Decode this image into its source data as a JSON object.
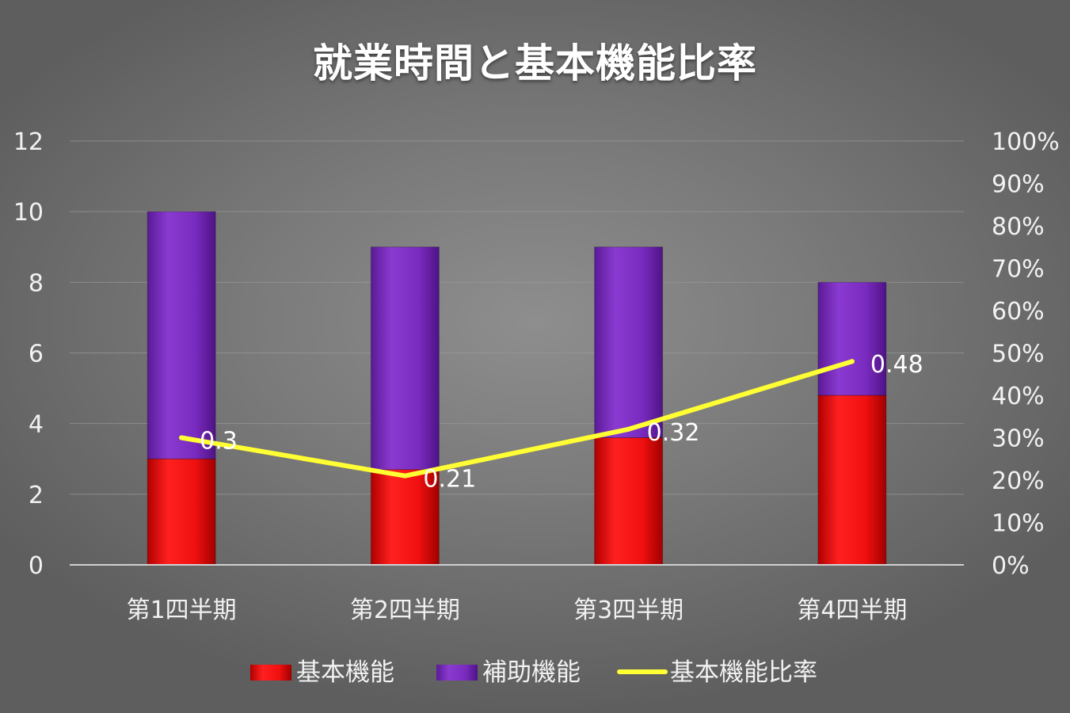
{
  "chart_data": {
    "type": "bar",
    "stacked": true,
    "title": "就業時間と基本機能比率",
    "categories": [
      "第1四半期",
      "第2四半期",
      "第3四半期",
      "第4四半期"
    ],
    "series": [
      {
        "name": "基本機能",
        "type": "bar",
        "axis": "left",
        "color": "#ee1010",
        "values": [
          3.0,
          2.7,
          3.6,
          4.8
        ]
      },
      {
        "name": "補助機能",
        "type": "bar",
        "axis": "left",
        "color": "#7a2bbf",
        "values": [
          7.0,
          6.3,
          5.4,
          3.2
        ]
      },
      {
        "name": "基本機能比率",
        "type": "line",
        "axis": "right",
        "color": "#ffff33",
        "values": [
          0.3,
          0.21,
          0.32,
          0.48
        ],
        "data_labels": [
          "0.3",
          "0.21",
          "0.32",
          "0.48"
        ]
      }
    ],
    "y_left": {
      "min": 0,
      "max": 12,
      "ticks": [
        "0",
        "2",
        "4",
        "6",
        "8",
        "10",
        "12"
      ]
    },
    "y_right": {
      "min": 0,
      "max": 1,
      "ticks": [
        "0%",
        "10%",
        "20%",
        "30%",
        "40%",
        "50%",
        "60%",
        "70%",
        "80%",
        "90%",
        "100%"
      ]
    },
    "grid": true,
    "legend_position": "bottom",
    "background": "#7a7a7a"
  }
}
